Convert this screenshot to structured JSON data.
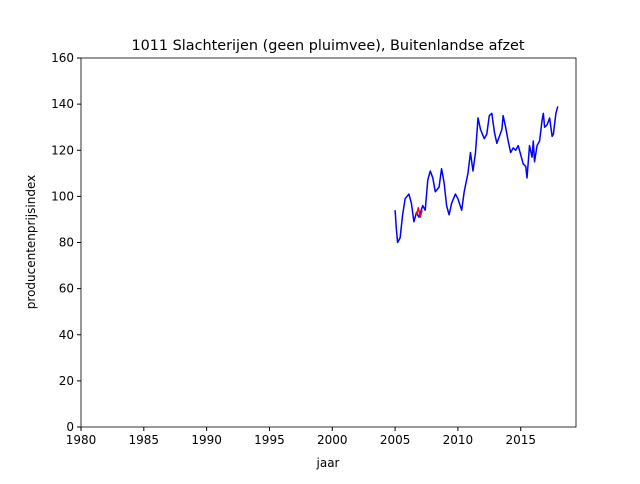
{
  "chart_data": {
    "type": "line",
    "title": "1011 Slachterijen (geen pluimvee), Buitenlandse afzet",
    "xlabel": "jaar",
    "ylabel": "producentenprijsindex",
    "xlim": [
      1980,
      2019.4
    ],
    "ylim": [
      0,
      160
    ],
    "xticks": [
      1980,
      1985,
      1990,
      1995,
      2000,
      2005,
      2010,
      2015
    ],
    "yticks": [
      0,
      20,
      40,
      60,
      80,
      100,
      120,
      140,
      160
    ],
    "series": [
      {
        "color": "#0000ff",
        "x": [
          2005.0,
          2005.1,
          2005.2,
          2005.4,
          2005.6,
          2005.8,
          2006.1,
          2006.3,
          2006.5,
          2006.7,
          2006.9,
          2007.2,
          2007.4,
          2007.6,
          2007.8,
          2008.0,
          2008.2,
          2008.5,
          2008.7,
          2008.9,
          2009.1,
          2009.3,
          2009.5,
          2009.8,
          2010.0,
          2010.3,
          2010.5,
          2010.8,
          2011.0,
          2011.2,
          2011.4,
          2011.6,
          2011.8,
          2012.1,
          2012.3,
          2012.5,
          2012.7,
          2012.9,
          2013.1,
          2013.3,
          2013.5,
          2013.6,
          2013.8,
          2014.0,
          2014.2,
          2014.4,
          2014.6,
          2014.8,
          2015.0,
          2015.2,
          2015.4,
          2015.5,
          2015.7,
          2015.9,
          2016.0,
          2016.1,
          2016.3,
          2016.5,
          2016.7,
          2016.8,
          2016.9,
          2017.1,
          2017.3,
          2017.5,
          2017.6,
          2017.8,
          2017.95
        ],
        "values": [
          94,
          86,
          80,
          82,
          92,
          99,
          101,
          97,
          89,
          93,
          91,
          96,
          94,
          107,
          111,
          108,
          102,
          104,
          112,
          106,
          96,
          92,
          97,
          101,
          99,
          94,
          102,
          110,
          119,
          111,
          119,
          134,
          129,
          125,
          127,
          135,
          136,
          128,
          123,
          126,
          129,
          135,
          130,
          124,
          119,
          121,
          120,
          122,
          118,
          114,
          113,
          108,
          122,
          117,
          124,
          115,
          122,
          124,
          133,
          136,
          130,
          131,
          134,
          126,
          127,
          136,
          139
        ]
      },
      {
        "color": "#ff0000",
        "x": [
          2006.7,
          2006.85,
          2007.0,
          2007.15
        ],
        "values": [
          92,
          95,
          91,
          94
        ]
      }
    ]
  }
}
